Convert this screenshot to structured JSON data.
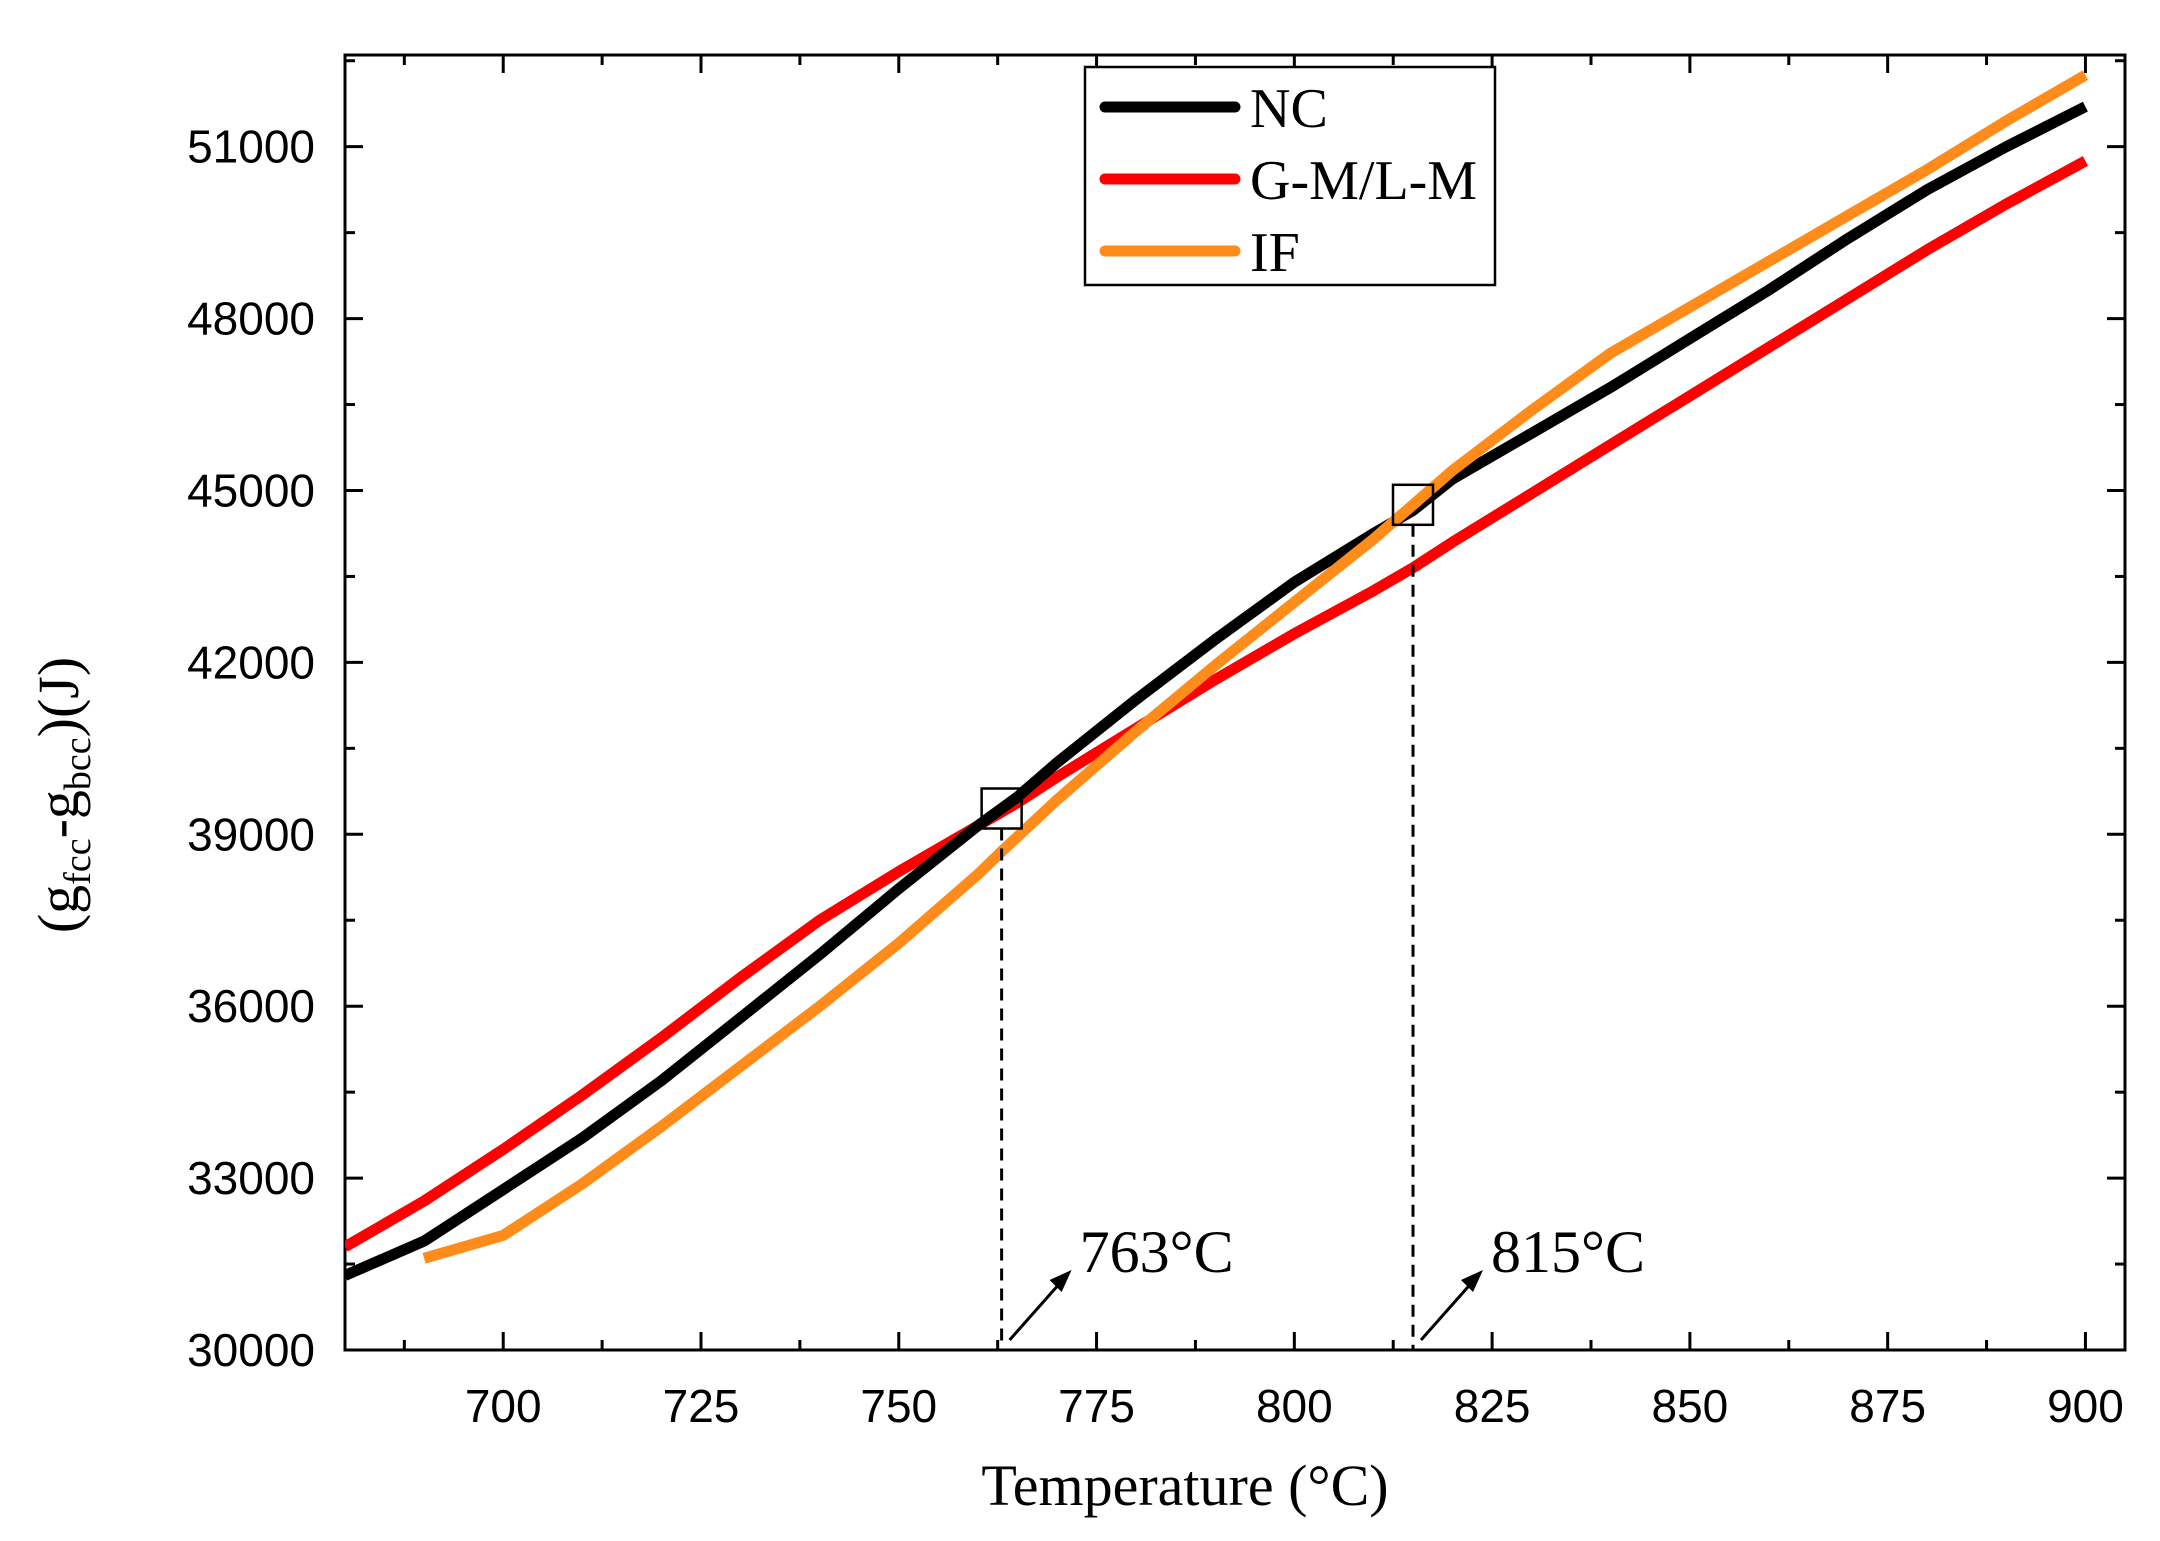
{
  "chart_data": {
    "type": "line",
    "title": "",
    "xlabel": "Temperature (°C)",
    "ylabel": {
      "prefix": "(g",
      "sub1": "fcc",
      "mid": "-g",
      "sub2": "bcc",
      "suffix": ")(J)"
    },
    "xlim": [
      680,
      905
    ],
    "ylim": [
      30000,
      52600
    ],
    "xticks": [
      700,
      725,
      750,
      775,
      800,
      825,
      850,
      875,
      900
    ],
    "yticks": [
      30000,
      33000,
      36000,
      39000,
      42000,
      45000,
      48000,
      51000
    ],
    "legend_position": "top-center",
    "series": [
      {
        "name": "NC",
        "color": "#000000",
        "x": [
          680,
          690,
          700,
          710,
          720,
          730,
          740,
          750,
          760,
          765,
          770,
          780,
          790,
          800,
          810,
          815,
          820,
          830,
          840,
          850,
          860,
          870,
          880,
          890,
          900
        ],
        "y": [
          31300,
          31900,
          32800,
          33700,
          34700,
          35800,
          36900,
          38050,
          39150,
          39650,
          40250,
          41350,
          42400,
          43400,
          44250,
          44650,
          45200,
          46000,
          46800,
          47650,
          48500,
          49400,
          50250,
          51000,
          51700
        ]
      },
      {
        "name": "G-M/L-M",
        "color": "#ff0000",
        "x": [
          680,
          690,
          700,
          710,
          720,
          730,
          740,
          750,
          760,
          765,
          770,
          780,
          790,
          800,
          810,
          815,
          820,
          830,
          840,
          850,
          860,
          870,
          880,
          890,
          900
        ],
        "y": [
          31800,
          32600,
          33500,
          34450,
          35450,
          36500,
          37500,
          38350,
          39150,
          39550,
          40000,
          40850,
          41700,
          42500,
          43250,
          43650,
          44100,
          44950,
          45800,
          46650,
          47500,
          48350,
          49200,
          50000,
          50750
        ]
      },
      {
        "name": "IF",
        "color": "#ff8c1a",
        "x": [
          690,
          700,
          710,
          720,
          730,
          740,
          750,
          760,
          763,
          770,
          780,
          790,
          800,
          810,
          815,
          820,
          830,
          840,
          850,
          860,
          870,
          880,
          890,
          900
        ],
        "y": [
          31600,
          32000,
          32900,
          33900,
          34950,
          36000,
          37100,
          38300,
          38700,
          39600,
          40800,
          41950,
          43050,
          44150,
          44750,
          45350,
          46400,
          47400,
          48200,
          49000,
          49800,
          50600,
          51450,
          52250
        ]
      }
    ],
    "annotations": [
      {
        "label": "763°C",
        "x": 763,
        "y_marker": 39450
      },
      {
        "label": "815°C",
        "x": 815,
        "y_marker": 44750
      }
    ]
  }
}
